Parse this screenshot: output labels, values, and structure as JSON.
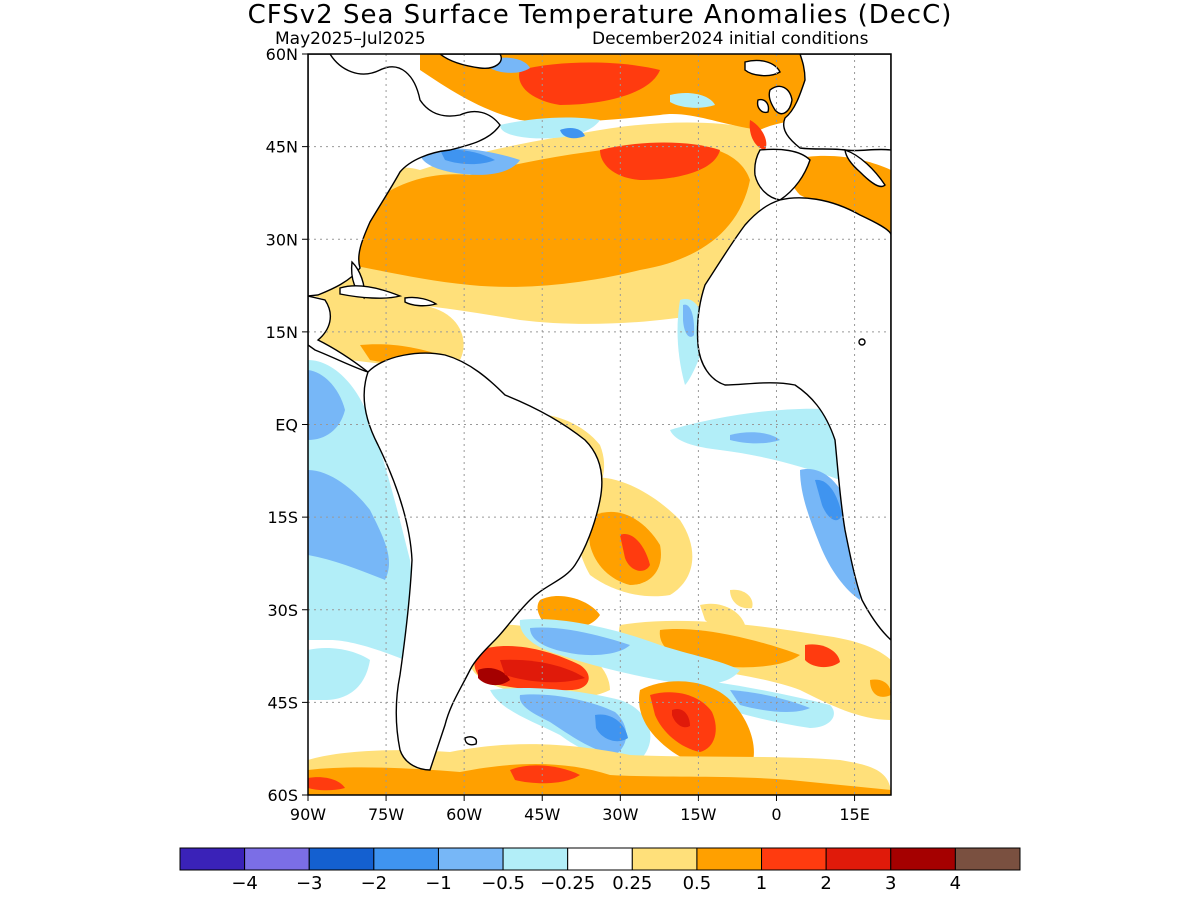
{
  "header": {
    "title": "CFSv2 Sea Surface Temperature Anomalies (DecC)",
    "period": "May2025–Jul2025",
    "init": "December2024 initial conditions"
  },
  "map": {
    "lon_range": [
      -90,
      22
    ],
    "lat_range": [
      -60,
      60
    ],
    "lon_ticks": [
      {
        "value": -90,
        "label": "90W"
      },
      {
        "value": -75,
        "label": "75W"
      },
      {
        "value": -60,
        "label": "60W"
      },
      {
        "value": -45,
        "label": "45W"
      },
      {
        "value": -30,
        "label": "30W"
      },
      {
        "value": -15,
        "label": "15W"
      },
      {
        "value": 0,
        "label": "0"
      },
      {
        "value": 15,
        "label": "15E"
      }
    ],
    "lat_ticks": [
      {
        "value": 60,
        "label": "60N"
      },
      {
        "value": 45,
        "label": "45N"
      },
      {
        "value": 30,
        "label": "30N"
      },
      {
        "value": 15,
        "label": "15N"
      },
      {
        "value": 0,
        "label": "EQ"
      },
      {
        "value": -15,
        "label": "15S"
      },
      {
        "value": -30,
        "label": "30S"
      },
      {
        "value": -45,
        "label": "45S"
      },
      {
        "value": -60,
        "label": "60S"
      }
    ],
    "grid": true,
    "land_color": "#ffffff",
    "coast_color": "#000000"
  },
  "colorbar": {
    "colors": [
      "#3a22b8",
      "#7b6ee6",
      "#1460d0",
      "#3f94f0",
      "#77b7f7",
      "#b2eef8",
      "#ffffff",
      "#ffe07a",
      "#ffa000",
      "#ff3b0f",
      "#e01a0a",
      "#a50000",
      "#7a5040"
    ],
    "labels": [
      "−4",
      "−3",
      "−2",
      "−1",
      "−0.5",
      "−0.25",
      "0.25",
      "0.5",
      "1",
      "2",
      "3",
      "4"
    ]
  }
}
